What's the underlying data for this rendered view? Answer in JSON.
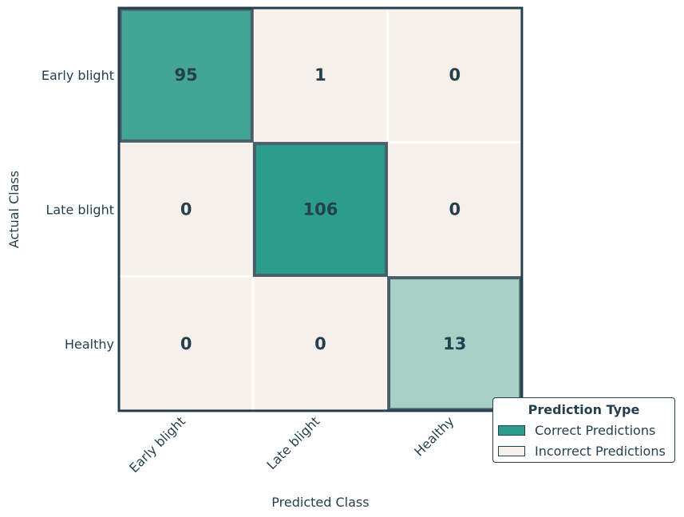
{
  "chart_data": {
    "type": "heatmap",
    "title": "",
    "xlabel": "Predicted Class",
    "ylabel": "Actual Class",
    "x_categories": [
      "Early blight",
      "Late blight",
      "Healthy"
    ],
    "y_categories": [
      "Early blight",
      "Late blight",
      "Healthy"
    ],
    "values": [
      [
        95,
        1,
        0
      ],
      [
        0,
        106,
        0
      ],
      [
        0,
        0,
        13
      ]
    ],
    "legend": {
      "title": "Prediction Type",
      "placement": "bottom-right",
      "entries": [
        {
          "label": "Correct Predictions",
          "color": "#2a9d8f"
        },
        {
          "label": "Incorrect Predictions",
          "color": "#f7f0ea"
        }
      ]
    },
    "colors": {
      "incorrect": "#f7f0ea",
      "correct_max": "#2a9d8f",
      "correct_min": "#e0e7df",
      "text": "#243f4d",
      "diagonal_border": "#4b5d66"
    },
    "grid": false
  }
}
